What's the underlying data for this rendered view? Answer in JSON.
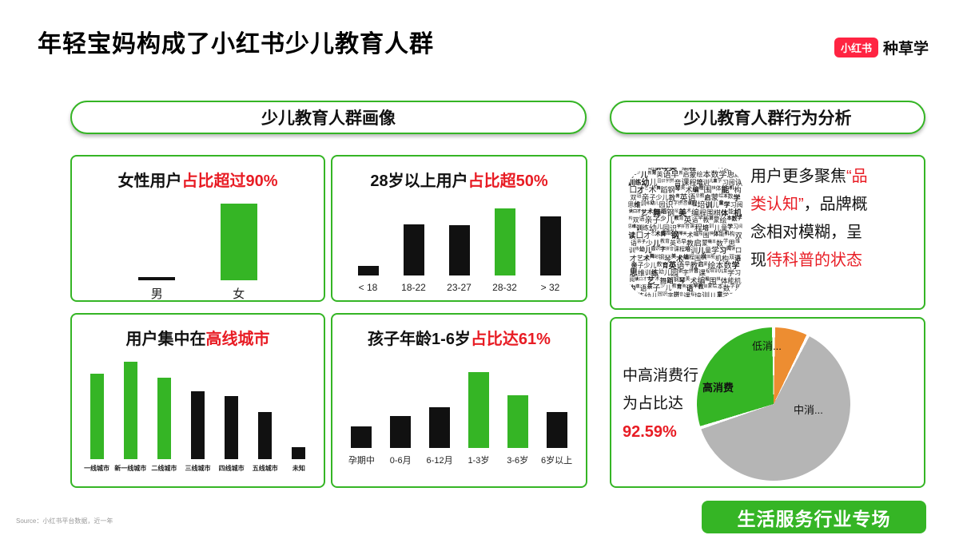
{
  "page": {
    "title": "年轻宝妈构成了小红书少儿教育人群",
    "logo_badge": "小红书",
    "logo_text": "种草学",
    "source": "Source：小红书平台数据，近一年",
    "cta_button": "生活服务行业专场"
  },
  "headers": {
    "portrait": "少儿教育人群画像",
    "behavior": "少儿教育人群行为分析"
  },
  "colors": {
    "green": "#35b525",
    "red": "#e81c24",
    "bar_black": "#111111",
    "pie_gray": "#b5b5b5",
    "pie_orange": "#ed8d31",
    "brand_red": "#ff2442"
  },
  "chart_data": [
    {
      "id": "gender",
      "type": "bar",
      "title_segments": [
        {
          "text": "女性用户",
          "red": false
        },
        {
          "text": "占比超过90%",
          "red": true
        }
      ],
      "categories": [
        "男",
        "女"
      ],
      "values": [
        4,
        92
      ],
      "colors": [
        "black",
        "green"
      ],
      "ylim": [
        0,
        100
      ]
    },
    {
      "id": "age",
      "type": "bar",
      "title_segments": [
        {
          "text": "28岁以上用户",
          "red": false
        },
        {
          "text": "占比超50%",
          "red": true
        }
      ],
      "categories": [
        "< 18",
        "18-22",
        "23-27",
        "28-32",
        "> 32"
      ],
      "values": [
        8,
        42,
        41,
        55,
        48
      ],
      "colors": [
        "black",
        "black",
        "black",
        "green",
        "black"
      ],
      "ylim": [
        0,
        60
      ]
    },
    {
      "id": "city",
      "type": "bar",
      "title_segments": [
        {
          "text": "用户集中在",
          "red": false
        },
        {
          "text": "高线城市",
          "red": true
        }
      ],
      "categories": [
        "一线城市",
        "新一线城市",
        "二线城市",
        "三线城市",
        "四线城市",
        "五线城市",
        "未知"
      ],
      "values": [
        88,
        100,
        84,
        70,
        65,
        48,
        12
      ],
      "colors": [
        "green",
        "green",
        "green",
        "black",
        "black",
        "black",
        "black"
      ],
      "ylim": [
        0,
        100
      ]
    },
    {
      "id": "child-age",
      "type": "bar",
      "title_segments": [
        {
          "text": "孩子年龄1-6岁",
          "red": false
        },
        {
          "text": "占比达61%",
          "red": true
        }
      ],
      "categories": [
        "孕期中",
        "0-6月",
        "6-12月",
        "1-3岁",
        "3-6岁",
        "6岁以上"
      ],
      "values": [
        25,
        38,
        48,
        90,
        62,
        42
      ],
      "colors": [
        "black",
        "black",
        "black",
        "green",
        "green",
        "black"
      ],
      "ylim": [
        0,
        100
      ]
    },
    {
      "id": "consumption",
      "type": "pie",
      "slices": [
        {
          "label": "低消...",
          "value": 7.41,
          "color": "orange"
        },
        {
          "label": "中消...",
          "value": 62.59,
          "color": "gray"
        },
        {
          "label": "高消费",
          "value": 30,
          "color": "green"
        }
      ]
    }
  ],
  "behavior_card": {
    "insight_segments": [
      {
        "text": "用户更多聚焦",
        "red": false
      },
      {
        "text": "“品类认知”",
        "red": true
      },
      {
        "text": "，品牌概念相对模糊，呈现",
        "red": false
      },
      {
        "text": "待科普的状态",
        "red": true
      }
    ],
    "wordcloud_glyphs": "少儿教育英语早教启蒙绘本数学思维训练幼儿园识字拼音课程培训儿童学习阅读口才艺术舞蹈钢琴美术编程围棋体能机构双语亲子"
  },
  "consumption_card": {
    "annotation_lines": [
      "中高消费行",
      "为占比达"
    ],
    "annotation_value": "92.59%"
  }
}
